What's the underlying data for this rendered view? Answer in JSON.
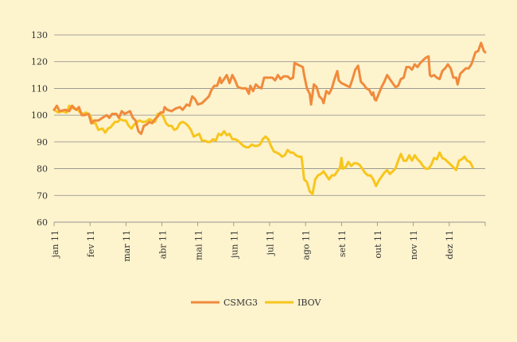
{
  "chart_data": {
    "type": "line",
    "title": "",
    "xlabel": "",
    "ylabel": "",
    "ylim": [
      60,
      130
    ],
    "yticks": [
      60,
      70,
      80,
      90,
      100,
      110,
      120,
      130
    ],
    "grid": true,
    "legend_position": "bottom",
    "x_tick_labels": [
      "jan 11",
      "fev 11",
      "mar 11",
      "abr 11",
      "mai 11",
      "jun 11",
      "jul 11",
      "ago 11",
      "set 11",
      "out 11",
      "nov 11",
      "dez 11"
    ],
    "series": [
      {
        "name": "CSMG3",
        "color": "#f08a3c",
        "points": [
          [
            0.0,
            102.0
          ],
          [
            0.1,
            103.5
          ],
          [
            0.2,
            101.5
          ],
          [
            0.4,
            102.0
          ],
          [
            0.55,
            101.5
          ],
          [
            0.65,
            103.5
          ],
          [
            0.8,
            102.0
          ],
          [
            0.9,
            103.0
          ],
          [
            1.0,
            100.0
          ],
          [
            1.1,
            100.0
          ],
          [
            1.25,
            100.5
          ],
          [
            1.35,
            97.0
          ],
          [
            1.45,
            98.0
          ],
          [
            1.6,
            98.0
          ],
          [
            1.75,
            99.0
          ],
          [
            1.9,
            100.0
          ],
          [
            2.0,
            99.0
          ],
          [
            2.1,
            100.5
          ],
          [
            2.25,
            100.5
          ],
          [
            2.35,
            99.0
          ],
          [
            2.45,
            101.5
          ],
          [
            2.55,
            100.5
          ],
          [
            2.65,
            101.0
          ],
          [
            2.75,
            101.5
          ],
          [
            2.85,
            99.0
          ],
          [
            2.95,
            98.0
          ],
          [
            3.05,
            94.0
          ],
          [
            3.15,
            93.0
          ],
          [
            3.25,
            96.0
          ],
          [
            3.35,
            96.5
          ],
          [
            3.45,
            97.5
          ],
          [
            3.55,
            97.0
          ],
          [
            3.65,
            98.5
          ],
          [
            3.75,
            99.5
          ],
          [
            3.85,
            101.0
          ],
          [
            3.95,
            101.0
          ],
          [
            4.0,
            103.0
          ],
          [
            4.1,
            102.0
          ],
          [
            4.25,
            101.5
          ],
          [
            4.4,
            102.5
          ],
          [
            4.55,
            103.0
          ],
          [
            4.65,
            102.0
          ],
          [
            4.8,
            104.0
          ],
          [
            4.9,
            103.5
          ],
          [
            5.0,
            107.0
          ],
          [
            5.1,
            106.0
          ],
          [
            5.2,
            104.0
          ],
          [
            5.35,
            104.5
          ],
          [
            5.5,
            106.0
          ],
          [
            5.6,
            107.0
          ],
          [
            5.7,
            109.5
          ],
          [
            5.8,
            111.0
          ],
          [
            5.9,
            111.0
          ],
          [
            6.0,
            114.0
          ],
          [
            6.05,
            112.0
          ],
          [
            6.15,
            113.5
          ],
          [
            6.25,
            115.0
          ],
          [
            6.35,
            112.0
          ],
          [
            6.45,
            115.0
          ],
          [
            6.55,
            113.0
          ],
          [
            6.65,
            110.5
          ],
          [
            6.8,
            110.0
          ],
          [
            6.95,
            110.0
          ],
          [
            7.05,
            108.0
          ],
          [
            7.1,
            111.0
          ],
          [
            7.2,
            109.0
          ],
          [
            7.3,
            111.5
          ],
          [
            7.4,
            110.5
          ],
          [
            7.5,
            110.0
          ],
          [
            7.6,
            114.0
          ],
          [
            7.75,
            114.0
          ],
          [
            7.9,
            114.0
          ],
          [
            8.0,
            113.0
          ],
          [
            8.1,
            115.0
          ],
          [
            8.2,
            113.5
          ],
          [
            8.3,
            114.5
          ],
          [
            8.45,
            114.5
          ],
          [
            8.55,
            113.5
          ],
          [
            8.65,
            114.0
          ],
          [
            8.7,
            119.5
          ],
          [
            8.8,
            119.0
          ],
          [
            8.9,
            118.5
          ],
          [
            9.0,
            118.0
          ],
          [
            9.05,
            115.0
          ],
          [
            9.15,
            110.0
          ],
          [
            9.25,
            108.0
          ],
          [
            9.3,
            104.0
          ],
          [
            9.4,
            111.5
          ],
          [
            9.5,
            110.5
          ],
          [
            9.6,
            107.0
          ],
          [
            9.7,
            106.0
          ],
          [
            9.75,
            104.5
          ],
          [
            9.85,
            109.0
          ],
          [
            9.95,
            108.0
          ],
          [
            10.05,
            110.0
          ],
          [
            10.15,
            113.5
          ],
          [
            10.25,
            116.5
          ],
          [
            10.3,
            113.0
          ],
          [
            10.4,
            112.0
          ],
          [
            10.5,
            111.5
          ],
          [
            10.6,
            111.0
          ],
          [
            10.7,
            110.5
          ],
          [
            10.8,
            113.5
          ],
          [
            10.9,
            117.0
          ],
          [
            11.0,
            118.5
          ],
          [
            11.1,
            112.5
          ],
          [
            11.2,
            111.5
          ],
          [
            11.3,
            110.0
          ],
          [
            11.4,
            109.5
          ],
          [
            11.5,
            107.5
          ],
          [
            11.55,
            108.5
          ],
          [
            11.6,
            106.0
          ],
          [
            11.65,
            105.5
          ],
          [
            11.75,
            108.0
          ],
          [
            11.85,
            110.5
          ],
          [
            11.95,
            112.5
          ],
          [
            12.05,
            115.0
          ],
          [
            12.15,
            113.5
          ],
          [
            12.25,
            112.0
          ],
          [
            12.35,
            110.5
          ],
          [
            12.45,
            111.0
          ],
          [
            12.55,
            113.5
          ],
          [
            12.65,
            114.0
          ],
          [
            12.75,
            118.0
          ],
          [
            12.85,
            118.0
          ],
          [
            12.95,
            117.0
          ],
          [
            13.05,
            119.0
          ],
          [
            13.15,
            118.0
          ],
          [
            13.25,
            119.5
          ],
          [
            13.35,
            120.5
          ],
          [
            13.45,
            121.5
          ],
          [
            13.55,
            122.0
          ],
          [
            13.6,
            115.0
          ],
          [
            13.65,
            114.5
          ],
          [
            13.75,
            115.0
          ],
          [
            13.85,
            114.0
          ],
          [
            13.95,
            113.5
          ],
          [
            14.05,
            116.5
          ],
          [
            14.15,
            117.5
          ],
          [
            14.25,
            119.0
          ],
          [
            14.35,
            117.5
          ],
          [
            14.45,
            114.0
          ],
          [
            14.55,
            114.0
          ],
          [
            14.6,
            111.5
          ],
          [
            14.7,
            115.5
          ],
          [
            14.8,
            116.5
          ],
          [
            14.9,
            117.5
          ],
          [
            15.0,
            117.5
          ],
          [
            15.1,
            119.0
          ],
          [
            15.15,
            120.5
          ],
          [
            15.25,
            123.5
          ],
          [
            15.35,
            124.0
          ],
          [
            15.45,
            127.0
          ],
          [
            15.55,
            124.0
          ],
          [
            15.6,
            123.5
          ]
        ]
      },
      {
        "name": "IBOV",
        "color": "#f7c51d",
        "points": [
          [
            0.0,
            102.0
          ],
          [
            0.15,
            101.0
          ],
          [
            0.3,
            101.5
          ],
          [
            0.45,
            101.0
          ],
          [
            0.55,
            103.5
          ],
          [
            0.7,
            102.5
          ],
          [
            0.85,
            102.0
          ],
          [
            0.95,
            101.0
          ],
          [
            1.05,
            100.5
          ],
          [
            1.15,
            101.0
          ],
          [
            1.3,
            100.0
          ],
          [
            1.4,
            97.0
          ],
          [
            1.5,
            97.0
          ],
          [
            1.6,
            94.5
          ],
          [
            1.75,
            95.0
          ],
          [
            1.85,
            93.5
          ],
          [
            1.95,
            95.0
          ],
          [
            2.05,
            95.5
          ],
          [
            2.2,
            97.5
          ],
          [
            2.3,
            97.5
          ],
          [
            2.4,
            98.5
          ],
          [
            2.5,
            98.0
          ],
          [
            2.6,
            98.0
          ],
          [
            2.7,
            96.0
          ],
          [
            2.8,
            95.0
          ],
          [
            2.9,
            96.5
          ],
          [
            3.0,
            97.5
          ],
          [
            3.1,
            98.0
          ],
          [
            3.2,
            97.5
          ],
          [
            3.3,
            97.5
          ],
          [
            3.45,
            98.5
          ],
          [
            3.55,
            98.0
          ],
          [
            3.65,
            97.5
          ],
          [
            3.75,
            100.5
          ],
          [
            3.85,
            100.5
          ],
          [
            3.95,
            99.5
          ],
          [
            4.05,
            97.0
          ],
          [
            4.15,
            96.0
          ],
          [
            4.25,
            96.0
          ],
          [
            4.35,
            94.5
          ],
          [
            4.45,
            95.0
          ],
          [
            4.55,
            97.0
          ],
          [
            4.65,
            97.5
          ],
          [
            4.75,
            97.0
          ],
          [
            4.85,
            96.0
          ],
          [
            4.95,
            94.5
          ],
          [
            5.05,
            92.0
          ],
          [
            5.15,
            92.5
          ],
          [
            5.25,
            93.0
          ],
          [
            5.35,
            90.5
          ],
          [
            5.45,
            90.5
          ],
          [
            5.55,
            90.0
          ],
          [
            5.65,
            90.0
          ],
          [
            5.75,
            91.0
          ],
          [
            5.85,
            90.5
          ],
          [
            5.95,
            93.0
          ],
          [
            6.05,
            92.5
          ],
          [
            6.15,
            94.0
          ],
          [
            6.25,
            92.5
          ],
          [
            6.35,
            93.0
          ],
          [
            6.45,
            91.0
          ],
          [
            6.55,
            91.0
          ],
          [
            6.65,
            90.5
          ],
          [
            6.75,
            89.5
          ],
          [
            6.85,
            88.5
          ],
          [
            6.95,
            88.0
          ],
          [
            7.05,
            88.0
          ],
          [
            7.15,
            89.0
          ],
          [
            7.25,
            88.5
          ],
          [
            7.35,
            88.5
          ],
          [
            7.45,
            89.0
          ],
          [
            7.55,
            91.0
          ],
          [
            7.65,
            92.0
          ],
          [
            7.75,
            91.0
          ],
          [
            7.85,
            88.5
          ],
          [
            7.95,
            86.5
          ],
          [
            8.05,
            86.0
          ],
          [
            8.15,
            85.5
          ],
          [
            8.25,
            84.5
          ],
          [
            8.35,
            85.0
          ],
          [
            8.45,
            87.0
          ],
          [
            8.55,
            86.0
          ],
          [
            8.65,
            86.0
          ],
          [
            8.75,
            85.0
          ],
          [
            8.85,
            84.5
          ],
          [
            8.95,
            84.5
          ],
          [
            9.0,
            80.5
          ],
          [
            9.05,
            76.0
          ],
          [
            9.15,
            75.0
          ],
          [
            9.25,
            71.5
          ],
          [
            9.35,
            70.5
          ],
          [
            9.45,
            76.0
          ],
          [
            9.55,
            77.5
          ],
          [
            9.65,
            78.0
          ],
          [
            9.75,
            79.0
          ],
          [
            9.85,
            77.5
          ],
          [
            9.95,
            76.0
          ],
          [
            10.05,
            77.5
          ],
          [
            10.15,
            77.5
          ],
          [
            10.25,
            79.0
          ],
          [
            10.35,
            80.5
          ],
          [
            10.4,
            84.0
          ],
          [
            10.45,
            80.0
          ],
          [
            10.55,
            80.5
          ],
          [
            10.65,
            82.5
          ],
          [
            10.75,
            81.0
          ],
          [
            10.85,
            82.0
          ],
          [
            10.95,
            82.0
          ],
          [
            11.05,
            81.5
          ],
          [
            11.15,
            80.0
          ],
          [
            11.25,
            78.5
          ],
          [
            11.35,
            77.5
          ],
          [
            11.45,
            77.5
          ],
          [
            11.55,
            76.0
          ],
          [
            11.65,
            73.5
          ],
          [
            11.75,
            75.5
          ],
          [
            11.85,
            77.0
          ],
          [
            11.95,
            78.5
          ],
          [
            12.05,
            79.5
          ],
          [
            12.15,
            78.0
          ],
          [
            12.25,
            79.0
          ],
          [
            12.35,
            80.0
          ],
          [
            12.45,
            83.0
          ],
          [
            12.55,
            85.5
          ],
          [
            12.65,
            83.0
          ],
          [
            12.75,
            83.0
          ],
          [
            12.85,
            85.0
          ],
          [
            12.95,
            83.0
          ],
          [
            13.05,
            85.0
          ],
          [
            13.15,
            83.5
          ],
          [
            13.25,
            82.5
          ],
          [
            13.35,
            81.0
          ],
          [
            13.45,
            80.0
          ],
          [
            13.55,
            80.0
          ],
          [
            13.65,
            81.5
          ],
          [
            13.75,
            84.0
          ],
          [
            13.85,
            83.5
          ],
          [
            13.95,
            86.0
          ],
          [
            14.05,
            84.0
          ],
          [
            14.15,
            83.5
          ],
          [
            14.25,
            82.5
          ],
          [
            14.35,
            81.5
          ],
          [
            14.45,
            80.5
          ],
          [
            14.55,
            79.5
          ],
          [
            14.65,
            83.0
          ],
          [
            14.75,
            83.5
          ],
          [
            14.85,
            84.5
          ],
          [
            14.95,
            83.0
          ],
          [
            15.05,
            82.5
          ],
          [
            15.15,
            80.5
          ]
        ]
      }
    ]
  }
}
